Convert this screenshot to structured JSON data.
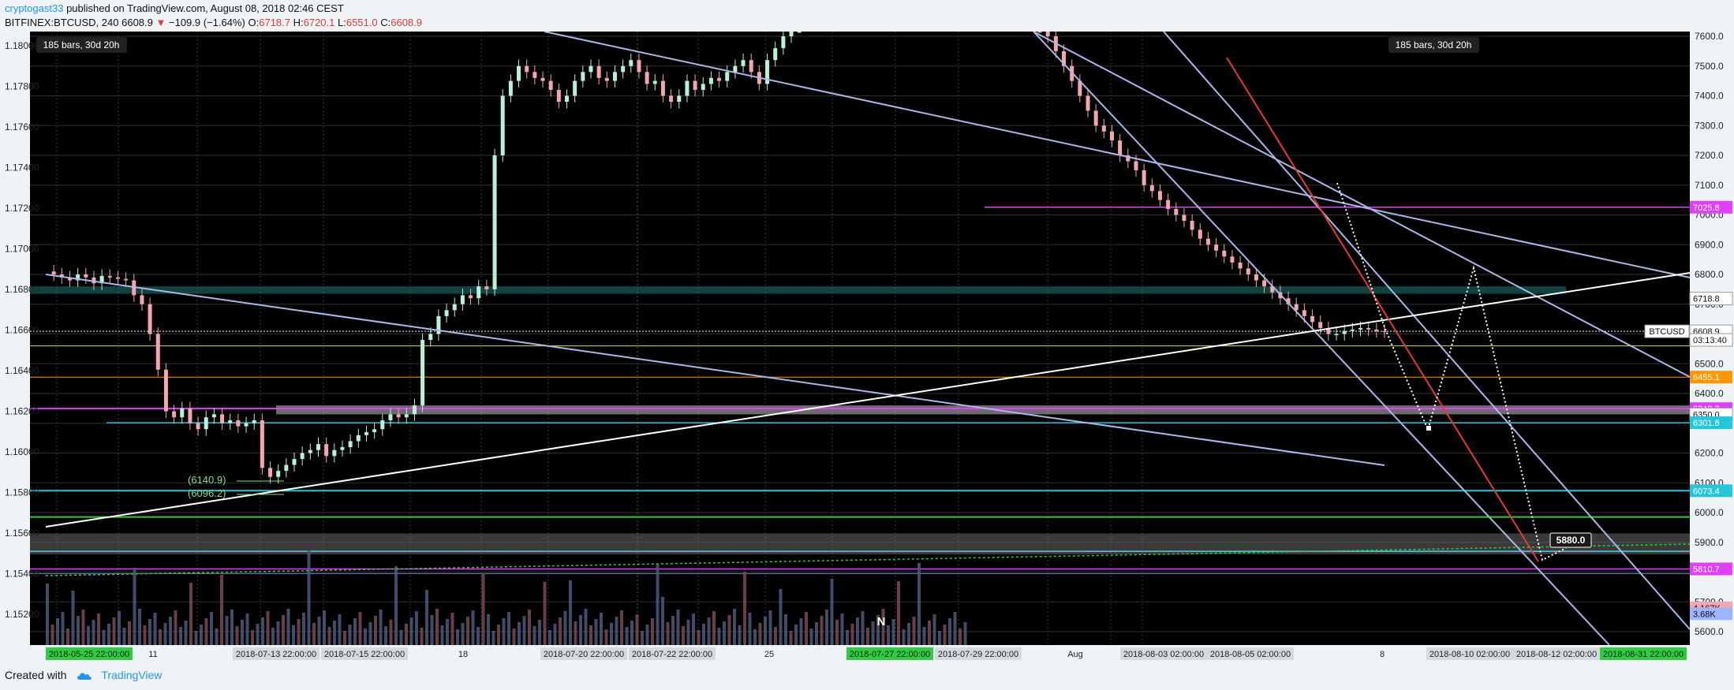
{
  "header": {
    "author": "cryptogast33",
    "published": "published on TradingView.com, August 08, 2018 02:46 CEST",
    "symbol": "BITFINEX:BTCUSD, 240",
    "last": "6608.9",
    "change": "−109.9 (−1.64%)",
    "o_label": "O:",
    "o_value": "6718.7",
    "h_label": "H:",
    "h_value": "6720.1",
    "l_label": "L:",
    "l_value": "6551.0",
    "c_label": "C:",
    "c_value": "6608.9"
  },
  "footer": {
    "created_with": "Created with",
    "brand": "TradingView",
    "icon": "tradingview-cloud-icon"
  },
  "chart_data": {
    "type": "candlestick",
    "colors": {
      "background": "#000000",
      "up": "#b9f0d8",
      "down": "#f4a6b0",
      "grid": "#2f2f2f",
      "trendline": "#aab8e8",
      "support": "#ffffff",
      "red_line": "#e53935"
    },
    "left_axis": {
      "ticks": [
        "1.18000",
        "1.17800",
        "1.17600",
        "1.17400",
        "1.17200",
        "1.17000",
        "1.16800",
        "1.16600",
        "1.16400",
        "1.16200",
        "1.16000",
        "1.15800",
        "1.15600",
        "1.15400",
        "1.15200"
      ]
    },
    "right_axis": {
      "ticks": [
        "7600.0",
        "7500.0",
        "7400.0",
        "7300.0",
        "7200.0",
        "7100.0",
        "7000.0",
        "6900.0",
        "6800.0",
        "6700.0",
        "6600.0",
        "6500.0",
        "6400.0",
        "6300.0",
        "6200.0",
        "6100.0",
        "6000.0",
        "5900.0",
        "5800.0",
        "5700.0",
        "5600.0"
      ]
    },
    "price_tags": [
      {
        "label": "7025.8",
        "value": 7025.8,
        "color": "#e040fb"
      },
      {
        "label": "6718.8",
        "value": 6718.8,
        "color": "#ffffff"
      },
      {
        "label": "6608.9",
        "value": 6608.9,
        "color": "#ffffff"
      },
      {
        "label": "03:13:40",
        "value": 6580,
        "color": "#ffffff"
      },
      {
        "label": "6455.1",
        "value": 6455.1,
        "color": "#ff9800"
      },
      {
        "label": "6349.3",
        "value": 6349.3,
        "color": "#e040fb"
      },
      {
        "label": "6350.0",
        "value": 6330,
        "color": "#ffffff"
      },
      {
        "label": "6301.8",
        "value": 6301.8,
        "color": "#26c6da"
      },
      {
        "label": "6073.4",
        "value": 6073.4,
        "color": "#26c6da"
      },
      {
        "label": "5810.7",
        "value": 5810.7,
        "color": "#e040fb"
      },
      {
        "label": "4.167K",
        "value": 5680,
        "color": "#f4a6b0"
      },
      {
        "label": "3.68K",
        "value": 5660,
        "color": "#9fb4ff"
      }
    ],
    "symbol_tag": "BTCUSD",
    "info_left": "185 bars, 30d 20h",
    "info_right": "185 bars, 30d 20h",
    "annotations": [
      "(6140.9)",
      "(6096.2)",
      "5880.0",
      "N"
    ],
    "x_labels": [
      {
        "text": "2018-05-25 22:00:00",
        "style": "green"
      },
      {
        "text": "11",
        "style": "plain"
      },
      {
        "text": "2018-07-13 22:00:00",
        "style": "gray"
      },
      {
        "text": "2018-07-15 22:00:00",
        "style": "gray"
      },
      {
        "text": "18",
        "style": "plain"
      },
      {
        "text": "2018-07-20 22:00:00",
        "style": "gray"
      },
      {
        "text": "2018-07-22 22:00:00",
        "style": "gray"
      },
      {
        "text": "25",
        "style": "plain"
      },
      {
        "text": "2018-07-27 22:00:00",
        "style": "green"
      },
      {
        "text": "2018-07-29 22:00:00",
        "style": "gray"
      },
      {
        "text": "Aug",
        "style": "plain"
      },
      {
        "text": "2018-08-03 02:00:00",
        "style": "gray"
      },
      {
        "text": "2018-08-05 02:00:00",
        "style": "gray"
      },
      {
        "text": "8",
        "style": "plain"
      },
      {
        "text": "2018-08-10 02:00:00",
        "style": "gray"
      },
      {
        "text": "2018-08-12 02:00:00",
        "style": "gray"
      },
      {
        "text": "2018-08-31 22:00:00",
        "style": "green"
      }
    ],
    "price_path": [
      6810,
      6800,
      6790,
      6780,
      6800,
      6790,
      6770,
      6795,
      6790,
      6785,
      6780,
      6730,
      6700,
      6600,
      6480,
      6340,
      6320,
      6350,
      6300,
      6280,
      6320,
      6330,
      6300,
      6310,
      6290,
      6300,
      6310,
      6150,
      6120,
      6140,
      6160,
      6180,
      6200,
      6210,
      6230,
      6190,
      6210,
      6220,
      6240,
      6260,
      6270,
      6280,
      6310,
      6330,
      6320,
      6330,
      6360,
      6580,
      6600,
      6660,
      6680,
      6700,
      6730,
      6720,
      6760,
      6750,
      7200,
      7400,
      7450,
      7500,
      7480,
      7460,
      7450,
      7420,
      7380,
      7400,
      7450,
      7480,
      7500,
      7460,
      7450,
      7480,
      7500,
      7520,
      7480,
      7440,
      7450,
      7400,
      7380,
      7400,
      7450,
      7420,
      7440,
      7460,
      7450,
      7480,
      7500,
      7520,
      7480,
      7440,
      7520,
      7560,
      7600,
      7650,
      7700,
      7750,
      7800,
      7850,
      7900,
      7950,
      8000,
      8050,
      8100,
      8150,
      8180,
      8200,
      8220,
      8250,
      8300,
      8280,
      8250,
      8200,
      8180,
      8150,
      8120,
      8080,
      8050,
      8000,
      7950,
      7900,
      7850,
      7800,
      7750,
      7700,
      7650,
      7600,
      7550,
      7500,
      7450,
      7400,
      7350,
      7300,
      7280,
      7250,
      7200,
      7180,
      7150,
      7100,
      7080,
      7050,
      7020,
      7000,
      6980,
      6950,
      6920,
      6900,
      6880,
      6860,
      6840,
      6820,
      6800,
      6780,
      6760,
      6740,
      6720,
      6700,
      6680,
      6660,
      6640,
      6620,
      6600,
      6600,
      6610,
      6615,
      6620,
      6615,
      6610,
      6608.9
    ]
  }
}
